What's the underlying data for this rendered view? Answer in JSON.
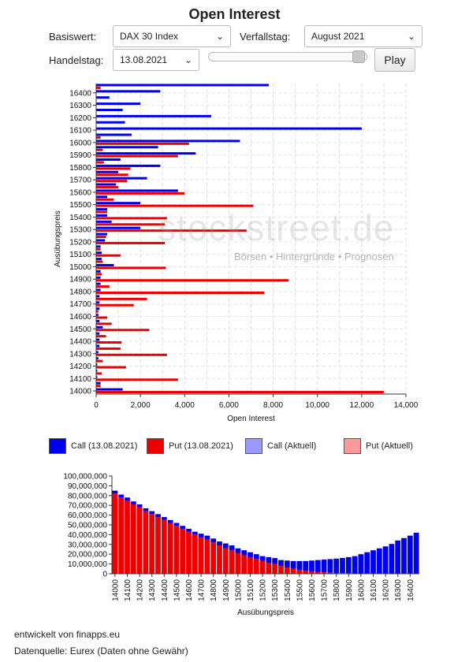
{
  "title": "Open Interest",
  "controls": {
    "basiswert_label": "Basiswert:",
    "basiswert_value": "DAX 30 Index",
    "verfallstag_label": "Verfallstag:",
    "verfallstag_value": "August 2021",
    "handelstag_label": "Handelstag:",
    "handelstag_value": "13.08.2021",
    "play_label": "Play",
    "slider_position": 1.0
  },
  "watermark": {
    "brand": "stockstreet.de",
    "tagline": "Börsen • Hintergründe • Prognosen"
  },
  "legend": {
    "call_today": "Call (13.08.2021)",
    "put_today": "Put (13.08.2021)",
    "call_current": "Call (Aktuell)",
    "put_current": "Put (Aktuell)"
  },
  "colors": {
    "call": "#0000ee",
    "put": "#ee0000",
    "call_current": "#9999ff",
    "put_current": "#ff9999"
  },
  "footer": {
    "developer": "entwickelt von finapps.eu",
    "source": "Datenquelle: Eurex (Daten ohne Gewähr)"
  },
  "chart_data": [
    {
      "type": "bar",
      "orientation": "horizontal",
      "xlabel": "Open Interest",
      "ylabel": "Ausübungspreis",
      "xlim": [
        0,
        14000
      ],
      "xticks": [
        "0",
        "2,000",
        "4,000",
        "6,000",
        "8,000",
        "10,000",
        "12,000",
        "14,000"
      ],
      "grid": true,
      "categories": [
        14000,
        14050,
        14100,
        14150,
        14200,
        14250,
        14300,
        14350,
        14400,
        14450,
        14500,
        14550,
        14600,
        14650,
        14700,
        14750,
        14800,
        14850,
        14900,
        14950,
        15000,
        15050,
        15100,
        15150,
        15200,
        15250,
        15300,
        15350,
        15400,
        15450,
        15500,
        15550,
        15600,
        15650,
        15700,
        15750,
        15800,
        15850,
        15900,
        15950,
        16000,
        16050,
        16100,
        16150,
        16200,
        16250,
        16300,
        16350,
        16400,
        16450
      ],
      "series": [
        {
          "name": "Call (13.08.2021)",
          "values": [
            1200,
            200,
            50,
            50,
            50,
            100,
            100,
            150,
            150,
            150,
            300,
            150,
            100,
            150,
            150,
            150,
            200,
            200,
            200,
            200,
            800,
            250,
            250,
            200,
            400,
            500,
            2000,
            700,
            500,
            500,
            2000,
            500,
            3700,
            900,
            2300,
            1000,
            2900,
            1100,
            4500,
            2800,
            6500,
            1600,
            12000,
            1300,
            5200,
            1200,
            2000,
            600,
            2900,
            7800
          ]
        },
        {
          "name": "Put (13.08.2021)",
          "values": [
            13000,
            200,
            3700,
            250,
            1350,
            300,
            3200,
            1100,
            1150,
            450,
            2400,
            700,
            500,
            100,
            1700,
            2300,
            7600,
            600,
            8700,
            250,
            3150,
            300,
            1100,
            200,
            3100,
            450,
            6800,
            3100,
            3200,
            500,
            7100,
            800,
            4000,
            1000,
            1400,
            1450,
            1550,
            350,
            3700,
            300,
            4200,
            200,
            0,
            0,
            0,
            0,
            0,
            0,
            0,
            200
          ]
        }
      ]
    },
    {
      "type": "bar",
      "stacked": true,
      "xlabel": "Ausübungspreis",
      "ylabel": "",
      "ylim": [
        0,
        100000000
      ],
      "yticks": [
        "0",
        "10,000,000",
        "20,000,000",
        "30,000,000",
        "40,000,000",
        "50,000,000",
        "60,000,000",
        "70,000,000",
        "80,000,000",
        "90,000,000",
        "100,000,000"
      ],
      "xticks": [
        14000,
        14100,
        14200,
        14300,
        14400,
        14500,
        14600,
        14700,
        14800,
        14900,
        15000,
        15100,
        15200,
        15300,
        15400,
        15500,
        15600,
        15700,
        15800,
        15900,
        16000,
        16100,
        16200,
        16300,
        16400
      ],
      "categories": [
        14000,
        14050,
        14100,
        14150,
        14200,
        14250,
        14300,
        14350,
        14400,
        14450,
        14500,
        14550,
        14600,
        14650,
        14700,
        14750,
        14800,
        14850,
        14900,
        14950,
        15000,
        15050,
        15100,
        15150,
        15200,
        15250,
        15300,
        15350,
        15400,
        15450,
        15500,
        15550,
        15600,
        15650,
        15700,
        15750,
        15800,
        15850,
        15900,
        15950,
        16000,
        16050,
        16100,
        16150,
        16200,
        16250,
        16300,
        16350,
        16400,
        16450
      ],
      "series": [
        {
          "name": "Put",
          "values": [
            82,
            78,
            75,
            71,
            68,
            64,
            61,
            58,
            55,
            52,
            49,
            46,
            43,
            40,
            37,
            35,
            32,
            29,
            26,
            24,
            21,
            19,
            17,
            15,
            13,
            11,
            10,
            8,
            6.5,
            5,
            4,
            3,
            2.5,
            2,
            1.5,
            1,
            0.8,
            0.6,
            0.5,
            0.4,
            0.3,
            0.2,
            0.2,
            0.1,
            0.1,
            0.1,
            0.1,
            0,
            0,
            0
          ]
        },
        {
          "name": "Call",
          "values": [
            3,
            3,
            3,
            3,
            3,
            3,
            3,
            3,
            3,
            3,
            3,
            3,
            3,
            3,
            4,
            4,
            4,
            4,
            5,
            5,
            5,
            5,
            5,
            5,
            5,
            6,
            6,
            6,
            7,
            8,
            9,
            10,
            11,
            12,
            13,
            14,
            14.7,
            15.5,
            16.5,
            17.6,
            19.7,
            21.8,
            23.8,
            25.9,
            27.9,
            30.4,
            33.9,
            36.5,
            39,
            42
          ]
        }
      ]
    }
  ]
}
